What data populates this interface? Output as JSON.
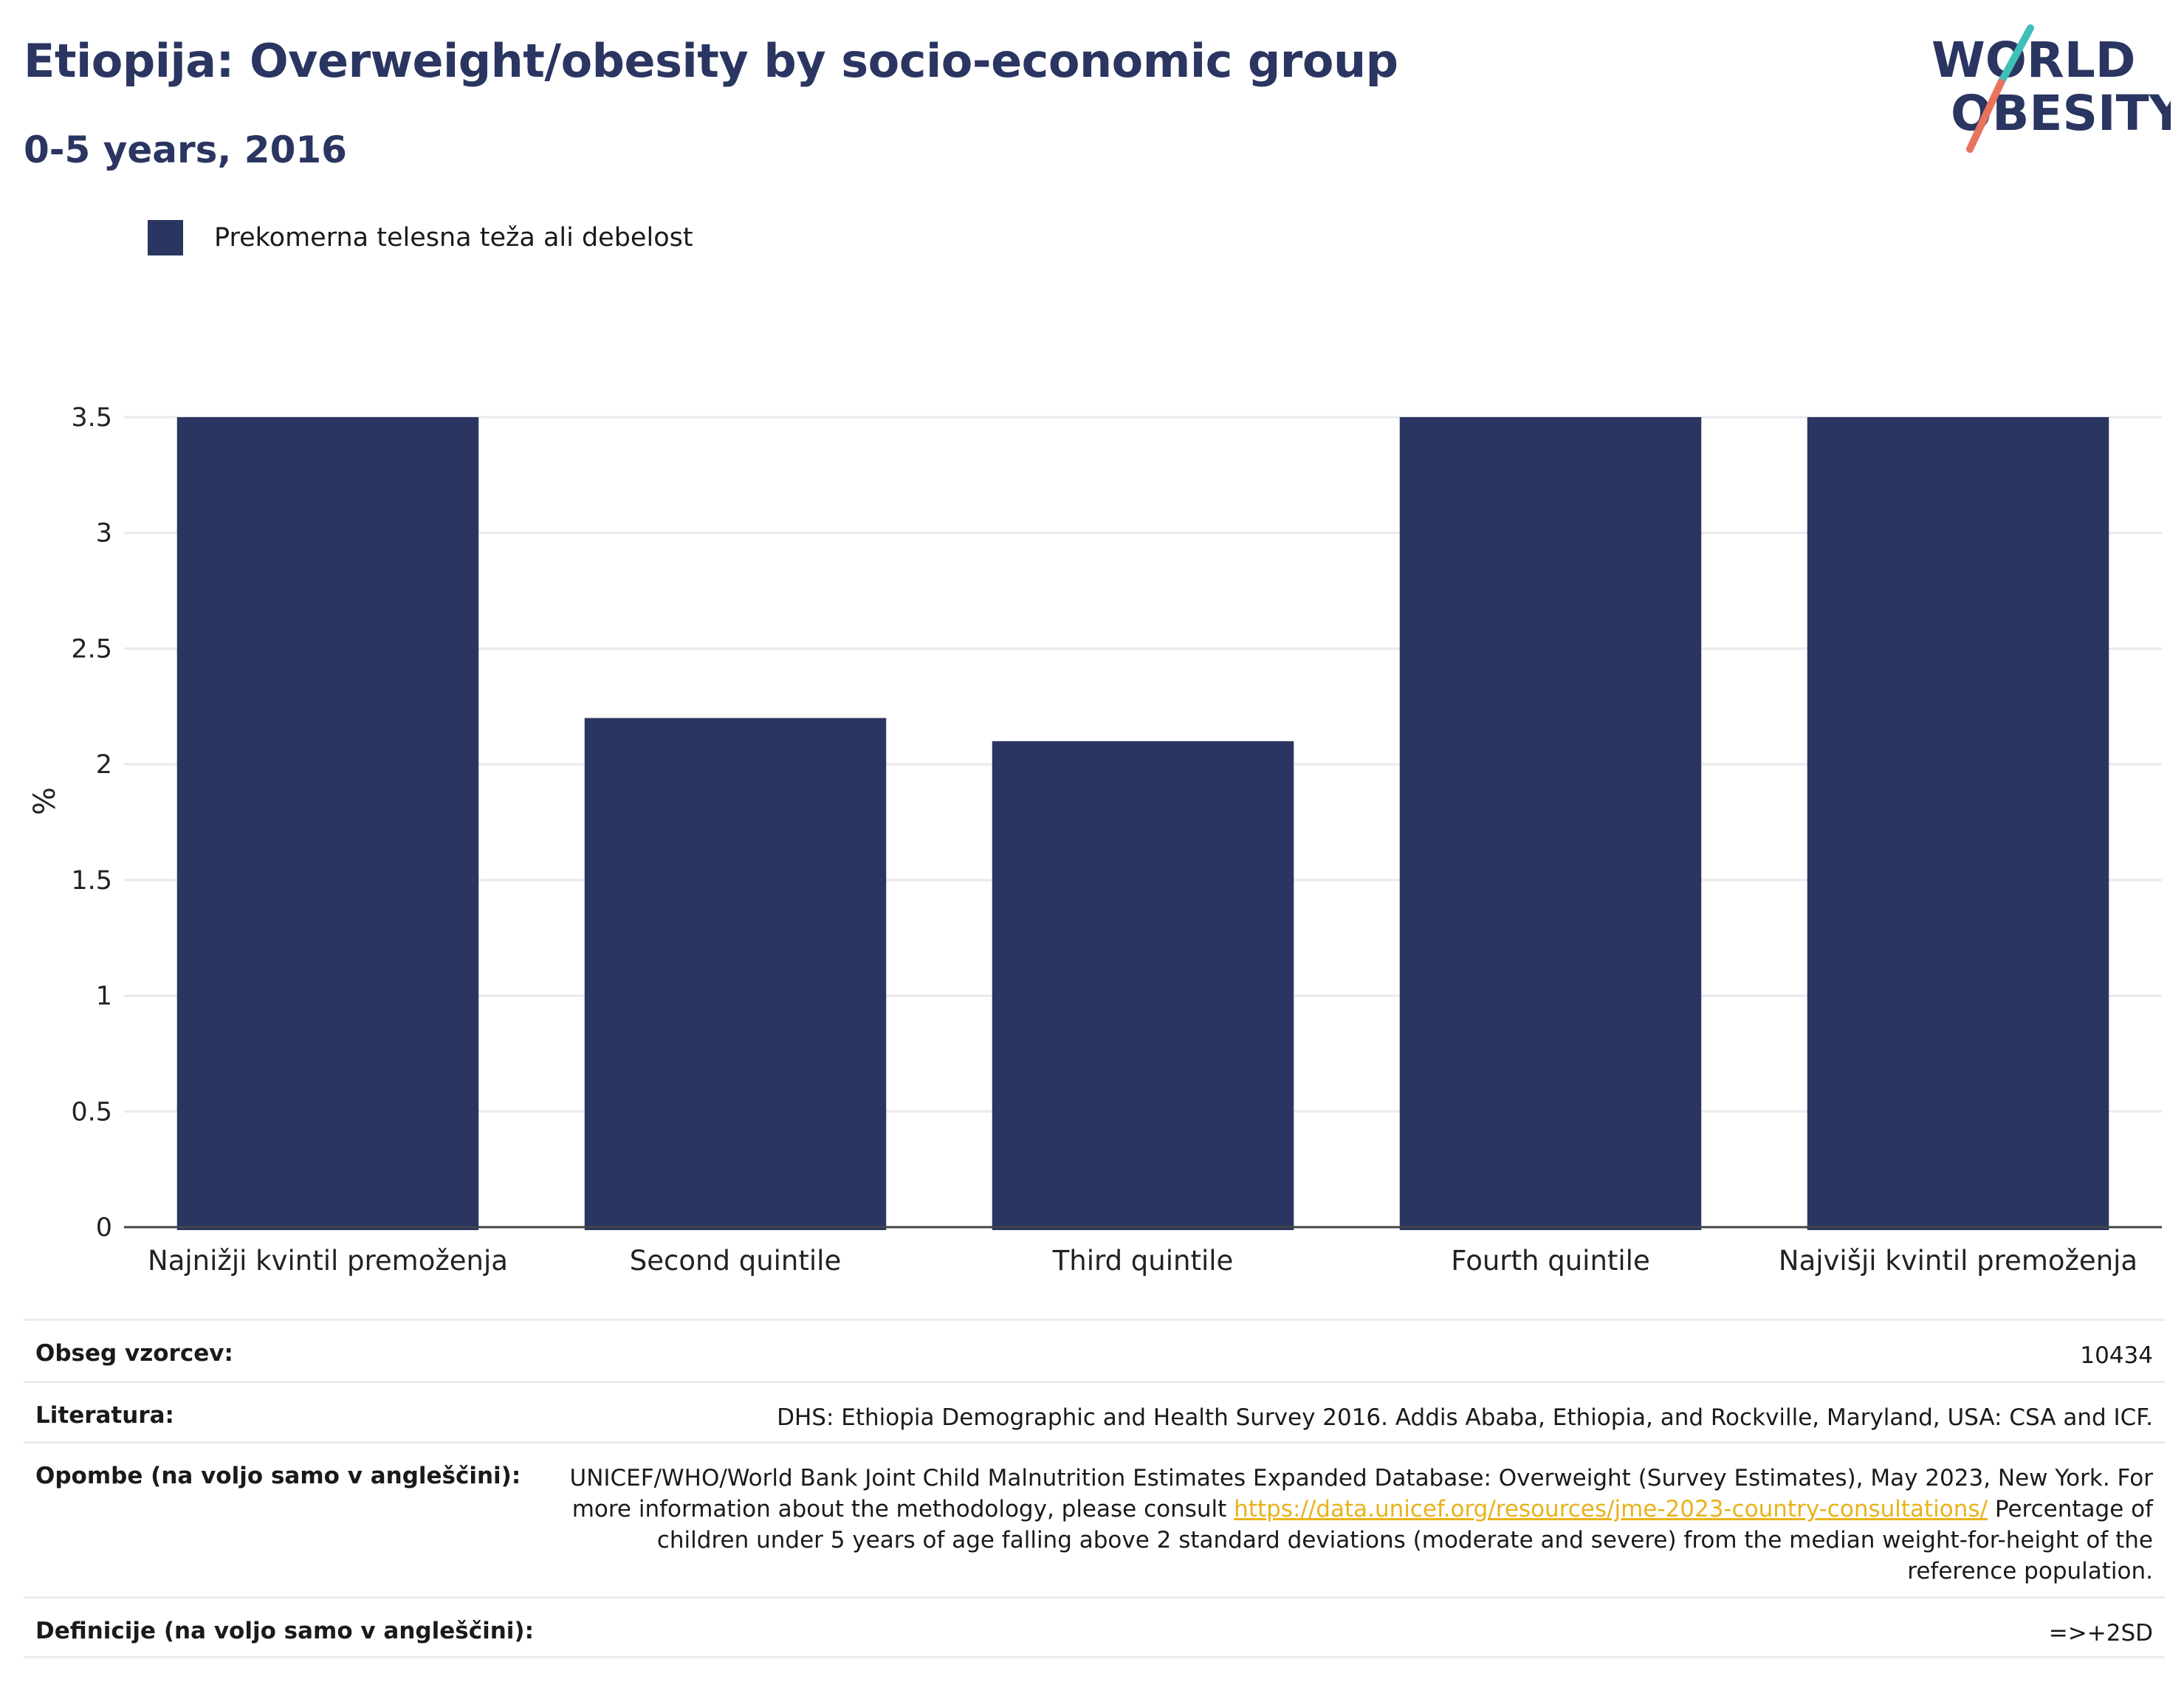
{
  "header": {
    "title": "Etiopija: Overweight/obesity by socio-economic group",
    "subtitle": "0-5 years, 2016",
    "logo_line1": "WORLD",
    "logo_line2": "OBESITY"
  },
  "legend": {
    "label": "Prekomerna telesna teža ali debelost"
  },
  "chart_data": {
    "type": "bar",
    "categories": [
      "Najnižji kvintil premoženja",
      "Second quintile",
      "Third quintile",
      "Fourth quintile",
      "Najvišji kvintil premoženja"
    ],
    "series": [
      {
        "name": "Prekomerna telesna teža ali debelost",
        "values": [
          3.5,
          2.2,
          2.1,
          3.5,
          3.5
        ]
      }
    ],
    "ylabel": "%",
    "ylim": [
      0,
      3.5
    ],
    "yticks": [
      0,
      0.5,
      1,
      1.5,
      2,
      2.5,
      3,
      3.5
    ],
    "ytick_labels": [
      "0",
      "0.5",
      "1",
      "1.5",
      "2",
      "2.5",
      "3",
      "3.5"
    ],
    "grid": true,
    "legend_position": "top-left",
    "bar_color": "#2a3561"
  },
  "table": {
    "sample_size_label": "Obseg vzorcev:",
    "sample_size_value": "10434",
    "literature_label": "Literatura:",
    "literature_value": "DHS: Ethiopia Demographic and Health Survey 2016. Addis Ababa, Ethiopia, and Rockville, Maryland, USA: CSA and ICF.",
    "notes_label": "Opombe (na voljo samo v angleščini):",
    "notes_text_1": "UNICEF/WHO/World Bank Joint Child Malnutrition Estimates Expanded Database: Overweight (Survey Estimates), May 2023, New York. For more information about the methodology, please consult",
    "notes_link": "https://data.unicef.org/resources/jme-2023-country-consultations/",
    "notes_text_2": "Percentage of children under 5 years of age falling above 2 standard deviations (moderate and severe) from the median weight-for-height of the reference population.",
    "definitions_label": "Definicije (na voljo samo v angleščini):",
    "definitions_value": "=>+2SD"
  },
  "colors": {
    "bar": "#2a3561",
    "title": "#2a3561",
    "logo_teal": "#3fbfb8",
    "logo_coral": "#e8735f",
    "link": "#e8b21a"
  }
}
